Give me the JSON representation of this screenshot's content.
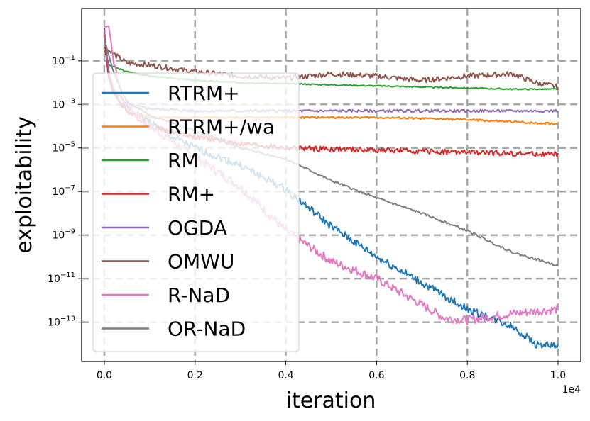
{
  "chart_data": {
    "type": "line",
    "title": "",
    "xlabel": "iteration",
    "ylabel": "exploitability",
    "x_offset_label": "1e4",
    "xlim": [
      -0.05,
      1.05
    ],
    "ylim_log10": [
      -14.8,
      1.4
    ],
    "x_ticks": [
      0.0,
      0.2,
      0.4,
      0.6,
      0.8,
      1.0
    ],
    "x_tick_labels": [
      "0.0",
      "0.2",
      "0.4",
      "0.6",
      "0.8",
      "1.0"
    ],
    "y_ticks_log10": [
      -1,
      -3,
      -5,
      -7,
      -9,
      -11,
      -13
    ],
    "y_tick_base": "10",
    "y_tick_exponents": [
      "−1",
      "−3",
      "−5",
      "−7",
      "−9",
      "−11",
      "−13"
    ],
    "grid": true,
    "legend_position": "left",
    "series": [
      {
        "name": "RTRM+",
        "color": "#1f77b4",
        "noise": 0.18,
        "seed": 1,
        "points_log10": [
          [
            0,
            0.5
          ],
          [
            0.005,
            -1.0
          ],
          [
            0.01,
            -1.8
          ],
          [
            0.02,
            -2.4
          ],
          [
            0.04,
            -3.0
          ],
          [
            0.06,
            -3.3
          ],
          [
            0.1,
            -3.8
          ],
          [
            0.15,
            -4.5
          ],
          [
            0.2,
            -5.0
          ],
          [
            0.3,
            -5.8
          ],
          [
            0.4,
            -6.9
          ],
          [
            0.5,
            -8.6
          ],
          [
            0.6,
            -10.0
          ],
          [
            0.7,
            -11.2
          ],
          [
            0.8,
            -12.4
          ],
          [
            0.9,
            -13.2
          ],
          [
            0.95,
            -14.0
          ],
          [
            1.0,
            -14.1
          ]
        ]
      },
      {
        "name": "RTRM+/wa",
        "color": "#ff7f0e",
        "noise": 0.05,
        "seed": 2,
        "points_log10": [
          [
            0,
            0.2
          ],
          [
            0.01,
            -1.5
          ],
          [
            0.02,
            -2.5
          ],
          [
            0.05,
            -3.3
          ],
          [
            0.1,
            -3.6
          ],
          [
            0.2,
            -3.6
          ],
          [
            0.4,
            -3.6
          ],
          [
            0.6,
            -3.6
          ],
          [
            0.8,
            -3.7
          ],
          [
            1.0,
            -3.9
          ]
        ]
      },
      {
        "name": "RM",
        "color": "#2ca02c",
        "noise": 0.03,
        "seed": 3,
        "points_log10": [
          [
            0,
            -0.5
          ],
          [
            0.01,
            -1.2
          ],
          [
            0.05,
            -1.5
          ],
          [
            0.1,
            -1.7
          ],
          [
            0.2,
            -1.9
          ],
          [
            0.3,
            -2.0
          ],
          [
            0.5,
            -2.1
          ],
          [
            0.7,
            -2.2
          ],
          [
            0.9,
            -2.3
          ],
          [
            1.0,
            -2.3
          ]
        ]
      },
      {
        "name": "RM+",
        "color": "#d62728",
        "noise": 0.12,
        "seed": 4,
        "points_log10": [
          [
            0,
            0.5
          ],
          [
            0.005,
            -1.0
          ],
          [
            0.01,
            -1.8
          ],
          [
            0.02,
            -2.5
          ],
          [
            0.05,
            -3.3
          ],
          [
            0.1,
            -4.0
          ],
          [
            0.2,
            -4.5
          ],
          [
            0.3,
            -4.8
          ],
          [
            0.4,
            -5.0
          ],
          [
            0.6,
            -5.1
          ],
          [
            0.8,
            -5.2
          ],
          [
            1.0,
            -5.3
          ]
        ]
      },
      {
        "name": "OGDA",
        "color": "#9467bd",
        "noise": 0.06,
        "seed": 5,
        "points_log10": [
          [
            0,
            0.4
          ],
          [
            0.01,
            -1.5
          ],
          [
            0.02,
            -2.3
          ],
          [
            0.05,
            -3.0
          ],
          [
            0.1,
            -3.2
          ],
          [
            0.2,
            -3.3
          ],
          [
            0.4,
            -3.3
          ],
          [
            0.6,
            -3.3
          ],
          [
            0.8,
            -3.3
          ],
          [
            1.0,
            -3.3
          ]
        ]
      },
      {
        "name": "OMWU",
        "color": "#8c564b",
        "noise": 0.12,
        "seed": 6,
        "points_log10": [
          [
            0,
            -0.4
          ],
          [
            0.05,
            -1.1
          ],
          [
            0.1,
            -1.2
          ],
          [
            0.2,
            -1.5
          ],
          [
            0.3,
            -1.7
          ],
          [
            0.4,
            -1.8
          ],
          [
            0.5,
            -1.6
          ],
          [
            0.6,
            -1.7
          ],
          [
            0.7,
            -1.9
          ],
          [
            0.8,
            -1.7
          ],
          [
            0.9,
            -1.6
          ],
          [
            0.95,
            -2.0
          ],
          [
            1.0,
            -2.2
          ]
        ]
      },
      {
        "name": "R-NaD",
        "color": "#e377c2",
        "noise": 0.2,
        "seed": 7,
        "points_log10": [
          [
            0,
            0.6
          ],
          [
            0.01,
            0.6
          ],
          [
            0.02,
            -1.0
          ],
          [
            0.04,
            -2.7
          ],
          [
            0.07,
            -3.5
          ],
          [
            0.1,
            -4.0
          ],
          [
            0.15,
            -4.7
          ],
          [
            0.2,
            -5.4
          ],
          [
            0.3,
            -6.8
          ],
          [
            0.4,
            -8.8
          ],
          [
            0.5,
            -10.2
          ],
          [
            0.6,
            -11.0
          ],
          [
            0.7,
            -12.2
          ],
          [
            0.75,
            -12.8
          ],
          [
            0.8,
            -12.9
          ],
          [
            0.9,
            -12.6
          ],
          [
            1.0,
            -12.4
          ]
        ]
      },
      {
        "name": "OR-NaD",
        "color": "#7f7f7f",
        "noise": 0.05,
        "seed": 8,
        "points_log10": [
          [
            0,
            0.0
          ],
          [
            0.02,
            -1.5
          ],
          [
            0.05,
            -2.9
          ],
          [
            0.1,
            -3.5
          ],
          [
            0.2,
            -4.2
          ],
          [
            0.3,
            -5.0
          ],
          [
            0.4,
            -5.5
          ],
          [
            0.5,
            -6.5
          ],
          [
            0.6,
            -7.3
          ],
          [
            0.7,
            -8.0
          ],
          [
            0.8,
            -8.8
          ],
          [
            0.9,
            -9.8
          ],
          [
            1.0,
            -10.4
          ]
        ]
      }
    ]
  }
}
